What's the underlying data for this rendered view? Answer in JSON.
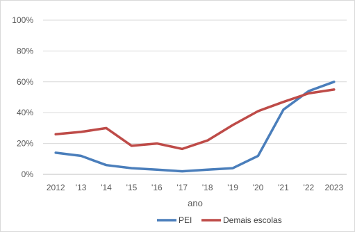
{
  "chart_data": {
    "type": "line",
    "title": "",
    "xlabel": "ano",
    "ylabel": "",
    "categories": [
      "2012",
      "'13",
      "'14",
      "'15",
      "'16",
      "'17",
      "'18",
      "'19",
      "'20",
      "'21",
      "'22",
      "2023"
    ],
    "ylim": [
      0,
      100
    ],
    "yticks": [
      "0%",
      "20%",
      "40%",
      "60%",
      "80%",
      "100%"
    ],
    "ytick_values": [
      0,
      20,
      40,
      60,
      80,
      100
    ],
    "grid": true,
    "legend_position": "bottom",
    "series": [
      {
        "name": "PEI",
        "color": "#4a7ebb",
        "values": [
          14,
          12,
          6,
          4,
          3,
          2,
          3,
          4,
          12,
          42,
          54,
          60
        ]
      },
      {
        "name": "Demais escolas",
        "color": "#be4b48",
        "values": [
          26,
          27.5,
          30,
          18.5,
          20,
          16.5,
          22,
          32,
          41,
          47,
          52.5,
          55
        ]
      }
    ]
  }
}
